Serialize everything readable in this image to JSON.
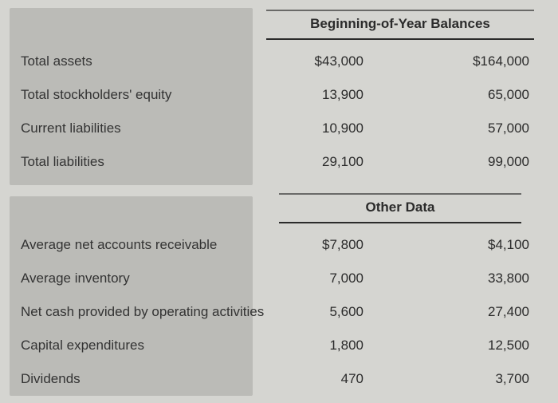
{
  "section1": {
    "header": "Beginning-of-Year Balances",
    "rows": [
      {
        "label": "Total assets",
        "col1": "$43,000",
        "col2": "$164,000"
      },
      {
        "label": "Total stockholders' equity",
        "col1": "13,900",
        "col2": "65,000"
      },
      {
        "label": "Current liabilities",
        "col1": "10,900",
        "col2": "57,000"
      },
      {
        "label": "Total liabilities",
        "col1": "29,100",
        "col2": "99,000"
      }
    ]
  },
  "section2": {
    "header": "Other Data",
    "rows": [
      {
        "label": "Average net accounts receivable",
        "col1": "$7,800",
        "col2": "$4,100"
      },
      {
        "label": "Average inventory",
        "col1": "7,000",
        "col2": "33,800"
      },
      {
        "label": "Net cash provided by operating activities",
        "col1": "5,600",
        "col2": "27,400"
      },
      {
        "label": "Capital expenditures",
        "col1": "1,800",
        "col2": "12,500"
      },
      {
        "label": "Dividends",
        "col1": "470",
        "col2": "3,700"
      }
    ]
  }
}
